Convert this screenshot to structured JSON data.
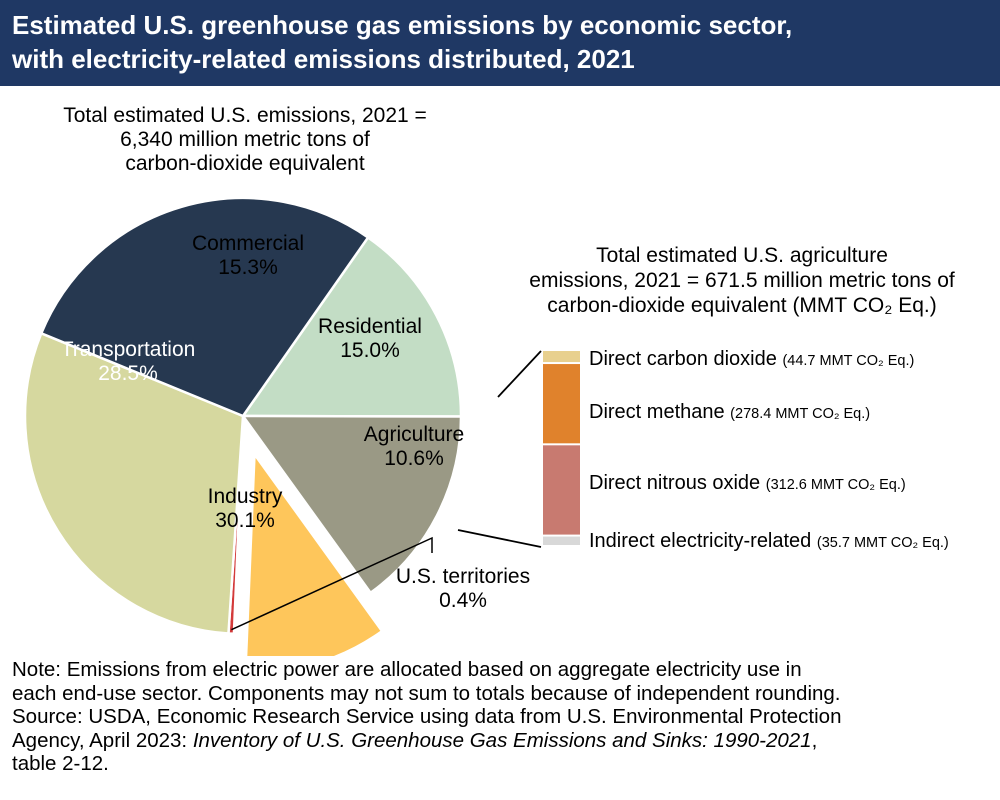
{
  "header": {
    "title_line1": "Estimated U.S. greenhouse gas emissions by economic sector,",
    "title_line2": "with electricity-related emissions distributed, 2021"
  },
  "colors": {
    "header_bg": "#1f3864",
    "transportation": "#263850",
    "commercial": "#c3ddc5",
    "residential": "#9a9985",
    "agriculture": "#fec65b",
    "industry": "#d6d89f",
    "territories": "#d33a3a",
    "direct_co2": "#e8d08e",
    "direct_methane": "#e0822c",
    "direct_nitrous": "#c87a70",
    "indirect_electricity": "#d8d8d8"
  },
  "chart_data": [
    {
      "type": "pie",
      "title": "Total estimated U.S. emissions, 2021 = 6,340 million metric tons of carbon-dioxide equivalent",
      "title_lines": [
        "Total estimated U.S. emissions, 2021 =",
        "6,340 million metric tons of",
        "carbon-dioxide equivalent"
      ],
      "unit": "%",
      "slices": [
        {
          "name": "Commercial",
          "value": 15.3,
          "label": "15.3%",
          "color": "#c3ddc5"
        },
        {
          "name": "Residential",
          "value": 15.0,
          "label": "15.0%",
          "color": "#9a9985"
        },
        {
          "name": "Agriculture",
          "value": 10.6,
          "label": "10.6%",
          "color": "#fec65b",
          "exploded": true
        },
        {
          "name": "U.S. territories",
          "value": 0.4,
          "label": "0.4%",
          "color": "#d33a3a"
        },
        {
          "name": "Industry",
          "value": 30.1,
          "label": "30.1%",
          "color": "#d6d89f"
        },
        {
          "name": "Transportation",
          "value": 28.5,
          "label": "28.5%",
          "color": "#263850"
        }
      ]
    },
    {
      "type": "bar",
      "stacked": true,
      "title": "Total estimated U.S. agriculture emissions, 2021 = 671.5 million metric tons of carbon-dioxide equivalent (MMT CO₂ Eq.)",
      "title_lines": [
        "Total estimated U.S. agriculture",
        "emissions, 2021 = 671.5 million metric tons of",
        "carbon-dioxide equivalent (MMT CO₂ Eq.)"
      ],
      "unit": "MMT CO₂ Eq.",
      "series": [
        {
          "name": "Direct carbon dioxide",
          "value": 44.7,
          "value_label": "(44.7 MMT CO₂ Eq.)",
          "color": "#e8d08e"
        },
        {
          "name": "Direct methane",
          "value": 278.4,
          "value_label": "(278.4 MMT CO₂ Eq.)",
          "color": "#e0822c"
        },
        {
          "name": "Direct nitrous oxide",
          "value": 312.6,
          "value_label": "(312.6 MMT CO₂ Eq.)",
          "color": "#c87a70"
        },
        {
          "name": "Indirect electricity-related",
          "value": 35.7,
          "value_label": "(35.7 MMT CO₂ Eq.)",
          "color": "#d8d8d8"
        }
      ]
    }
  ],
  "footer": {
    "note_line1": "Note: Emissions from electric power are allocated based on aggregate electricity use in",
    "note_line2": "each end-use sector. Components may not sum to totals because of independent rounding.",
    "source_line1": "Source: USDA, Economic Research Service using data from U.S. Environmental Protection",
    "source_prefix": "Agency, April 2023: ",
    "source_title": "Inventory of U.S. Greenhouse Gas Emissions and Sinks: 1990-2021",
    "source_suffix": ",",
    "source_line3": "table 2-12."
  }
}
